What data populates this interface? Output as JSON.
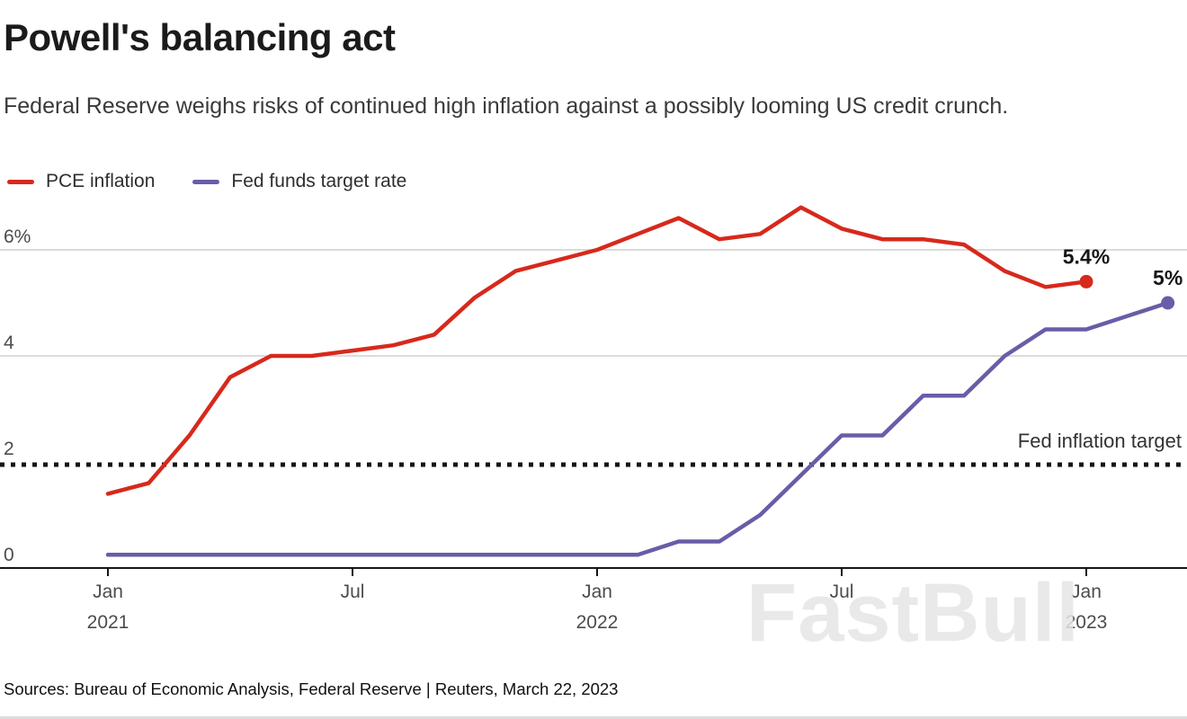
{
  "header": {
    "title": "Powell's balancing act",
    "subtitle": "Federal Reserve weighs risks of continued high inflation against a possibly looming US credit crunch."
  },
  "legend": [
    {
      "label": "PCE inflation",
      "color": "#d7291c"
    },
    {
      "label": "Fed funds target rate",
      "color": "#6a5ca7"
    }
  ],
  "chart_data": {
    "type": "line",
    "x_unit": "months from Jan 2021",
    "series": [
      {
        "name": "PCE inflation",
        "color": "#d7291c",
        "x_start": 0,
        "values": [
          1.4,
          1.6,
          2.5,
          3.6,
          4.0,
          4.0,
          4.1,
          4.2,
          4.4,
          5.1,
          5.6,
          5.8,
          6.0,
          6.3,
          6.6,
          6.2,
          6.3,
          6.8,
          6.4,
          6.2,
          6.2,
          6.1,
          5.6,
          5.3,
          5.4
        ],
        "end_label": "5.4%"
      },
      {
        "name": "Fed funds target rate",
        "color": "#6a5ca7",
        "x_start": 0,
        "values": [
          0.25,
          0.25,
          0.25,
          0.25,
          0.25,
          0.25,
          0.25,
          0.25,
          0.25,
          0.25,
          0.25,
          0.25,
          0.25,
          0.25,
          0.5,
          0.5,
          1.0,
          1.75,
          2.5,
          2.5,
          3.25,
          3.25,
          4.0,
          4.5,
          4.5,
          4.75,
          5.0
        ],
        "end_label": "5%"
      }
    ],
    "y_ticks": [
      {
        "value": 0,
        "label": "0"
      },
      {
        "value": 2,
        "label": "2"
      },
      {
        "value": 4,
        "label": "4"
      },
      {
        "value": 6,
        "label": "6%"
      }
    ],
    "grid_values": [
      4,
      6
    ],
    "x_ticks": [
      {
        "month": 0,
        "line1": "Jan",
        "line2": "2021"
      },
      {
        "month": 6,
        "line1": "Jul",
        "line2": ""
      },
      {
        "month": 12,
        "line1": "Jan",
        "line2": "2022"
      },
      {
        "month": 18,
        "line1": "Jul",
        "line2": ""
      },
      {
        "month": 24,
        "line1": "Jan",
        "line2": "2023"
      }
    ],
    "reference_line": {
      "value": 2,
      "label": "Fed inflation target"
    },
    "ylim": [
      0,
      7
    ],
    "grid": true,
    "legend_position": "top-left"
  },
  "watermark": "FastBull",
  "footer": {
    "sources": "Sources: Bureau of Economic Analysis, Federal Reserve | Reuters, March 22, 2023"
  }
}
